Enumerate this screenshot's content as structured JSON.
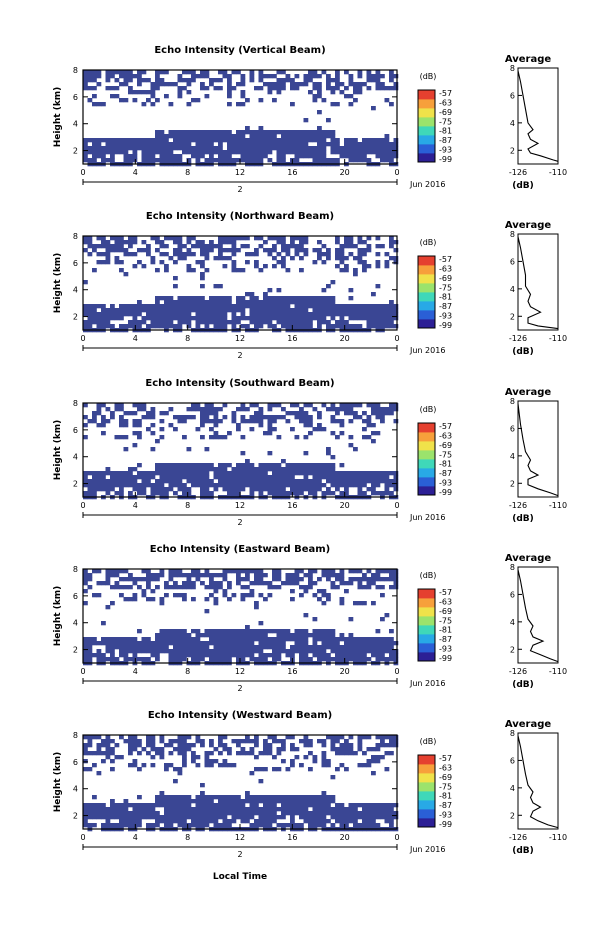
{
  "chart_data": [
    {
      "type": "heatmap",
      "title": "Echo Intensity (Vertical Beam)",
      "ylabel": "Height (km)",
      "x_ticks": [
        "0",
        "4",
        "8",
        "12",
        "16",
        "20",
        "0"
      ],
      "xlim": [
        0,
        24
      ],
      "ylim": [
        1,
        8
      ],
      "y_ticks": [
        "2",
        "4",
        "6",
        "8"
      ],
      "date_label": "2",
      "month_label": "Jun 2016",
      "colorbar": {
        "unit": "(dB)",
        "ticks": [
          "-57",
          "-63",
          "-69",
          "-75",
          "-81",
          "-87",
          "-93",
          "-99"
        ]
      },
      "profile": {
        "title": "Average",
        "xlabel": "(dB)",
        "x_ticks": [
          "-126",
          "-110"
        ],
        "y_ticks": [
          "2",
          "4",
          "6",
          "8"
        ],
        "xlim": [
          -126,
          -110
        ],
        "ylim": [
          1,
          8
        ],
        "points": [
          [
            -110,
            1.2
          ],
          [
            -112,
            1.3
          ],
          [
            -117,
            1.6
          ],
          [
            -121,
            1.8
          ],
          [
            -122,
            2.1
          ],
          [
            -118,
            2.5
          ],
          [
            -121,
            2.8
          ],
          [
            -122,
            3.2
          ],
          [
            -120,
            3.5
          ],
          [
            -122,
            4.0
          ],
          [
            -123,
            5.0
          ],
          [
            -124,
            6.0
          ],
          [
            -125,
            7.0
          ],
          [
            -126,
            7.8
          ]
        ]
      }
    },
    {
      "type": "heatmap",
      "title": "Echo Intensity (Northward Beam)",
      "ylabel": "Height (km)",
      "x_ticks": [
        "0",
        "4",
        "8",
        "12",
        "16",
        "20",
        "0"
      ],
      "xlim": [
        0,
        24
      ],
      "ylim": [
        1,
        8
      ],
      "y_ticks": [
        "2",
        "4",
        "6",
        "8"
      ],
      "date_label": "2",
      "month_label": "Jun 2016",
      "colorbar": {
        "unit": "(dB)",
        "ticks": [
          "-57",
          "-63",
          "-69",
          "-75",
          "-81",
          "-87",
          "-93",
          "-99"
        ]
      },
      "profile": {
        "title": "Average",
        "xlabel": "(dB)",
        "x_ticks": [
          "-126",
          "-110"
        ],
        "y_ticks": [
          "2",
          "4",
          "6",
          "8"
        ],
        "xlim": [
          -126,
          -110
        ],
        "ylim": [
          1,
          8
        ],
        "points": [
          [
            -110,
            1.1
          ],
          [
            -118,
            1.3
          ],
          [
            -122,
            1.5
          ],
          [
            -122,
            1.9
          ],
          [
            -117,
            2.3
          ],
          [
            -121,
            2.7
          ],
          [
            -122,
            3.1
          ],
          [
            -121,
            3.6
          ],
          [
            -123,
            4.2
          ],
          [
            -123,
            5.0
          ],
          [
            -124,
            6.0
          ],
          [
            -125,
            7.0
          ],
          [
            -126,
            7.8
          ]
        ]
      }
    },
    {
      "type": "heatmap",
      "title": "Echo Intensity (Southward Beam)",
      "ylabel": "Height (km)",
      "x_ticks": [
        "0",
        "4",
        "8",
        "12",
        "16",
        "20",
        "0"
      ],
      "xlim": [
        0,
        24
      ],
      "ylim": [
        1,
        8
      ],
      "y_ticks": [
        "2",
        "4",
        "6",
        "8"
      ],
      "date_label": "2",
      "month_label": "Jun 2016",
      "colorbar": {
        "unit": "(dB)",
        "ticks": [
          "-57",
          "-63",
          "-69",
          "-75",
          "-81",
          "-87",
          "-93",
          "-99"
        ]
      },
      "profile": {
        "title": "Average",
        "xlabel": "(dB)",
        "x_ticks": [
          "-126",
          "-110"
        ],
        "y_ticks": [
          "2",
          "4",
          "6",
          "8"
        ],
        "xlim": [
          -126,
          -110
        ],
        "ylim": [
          1,
          8
        ],
        "points": [
          [
            -110,
            1.1
          ],
          [
            -113,
            1.3
          ],
          [
            -118,
            1.6
          ],
          [
            -122,
            1.9
          ],
          [
            -122,
            2.3
          ],
          [
            -118,
            2.6
          ],
          [
            -121,
            2.9
          ],
          [
            -122,
            3.3
          ],
          [
            -121,
            3.7
          ],
          [
            -123,
            4.3
          ],
          [
            -124,
            5.2
          ],
          [
            -125,
            6.3
          ],
          [
            -126,
            7.8
          ]
        ]
      }
    },
    {
      "type": "heatmap",
      "title": "Echo Intensity (Eastward Beam)",
      "ylabel": "Height (km)",
      "x_ticks": [
        "0",
        "4",
        "8",
        "12",
        "16",
        "20",
        "0"
      ],
      "xlim": [
        0,
        24
      ],
      "ylim": [
        1,
        8
      ],
      "y_ticks": [
        "2",
        "4",
        "6",
        "8"
      ],
      "date_label": "2",
      "month_label": "Jun 2016",
      "colorbar": {
        "unit": "(dB)",
        "ticks": [
          "-57",
          "-63",
          "-69",
          "-75",
          "-81",
          "-87",
          "-93",
          "-99"
        ]
      },
      "profile": {
        "title": "Average",
        "xlabel": "(dB)",
        "x_ticks": [
          "-126",
          "-110"
        ],
        "y_ticks": [
          "2",
          "4",
          "6",
          "8"
        ],
        "xlim": [
          -126,
          -110
        ],
        "ylim": [
          1,
          8
        ],
        "points": [
          [
            -110,
            1.1
          ],
          [
            -113,
            1.3
          ],
          [
            -117,
            1.6
          ],
          [
            -121,
            1.9
          ],
          [
            -120,
            2.3
          ],
          [
            -116,
            2.6
          ],
          [
            -120,
            2.9
          ],
          [
            -121,
            3.3
          ],
          [
            -120,
            3.7
          ],
          [
            -122,
            4.2
          ],
          [
            -123,
            5.0
          ],
          [
            -124,
            6.0
          ],
          [
            -125,
            7.0
          ],
          [
            -126,
            7.8
          ]
        ]
      }
    },
    {
      "type": "heatmap",
      "title": "Echo Intensity (Westward Beam)",
      "ylabel": "Height (km)",
      "xlabel": "Local Time",
      "x_ticks": [
        "0",
        "4",
        "8",
        "12",
        "16",
        "20",
        "0"
      ],
      "xlim": [
        0,
        24
      ],
      "ylim": [
        1,
        8
      ],
      "y_ticks": [
        "2",
        "4",
        "6",
        "8"
      ],
      "date_label": "2",
      "month_label": "Jun 2016",
      "colorbar": {
        "unit": "(dB)",
        "ticks": [
          "-57",
          "-63",
          "-69",
          "-75",
          "-81",
          "-87",
          "-93",
          "-99"
        ]
      },
      "profile": {
        "title": "Average",
        "xlabel": "(dB)",
        "x_ticks": [
          "-126",
          "-110"
        ],
        "y_ticks": [
          "2",
          "4",
          "6",
          "8"
        ],
        "xlim": [
          -126,
          -110
        ],
        "ylim": [
          1,
          8
        ],
        "points": [
          [
            -110,
            1.1
          ],
          [
            -114,
            1.3
          ],
          [
            -118,
            1.6
          ],
          [
            -121,
            1.9
          ],
          [
            -120,
            2.3
          ],
          [
            -117,
            2.6
          ],
          [
            -120,
            2.9
          ],
          [
            -121,
            3.3
          ],
          [
            -120,
            3.7
          ],
          [
            -122,
            4.2
          ],
          [
            -123,
            5.0
          ],
          [
            -124,
            6.0
          ],
          [
            -125,
            7.0
          ],
          [
            -126,
            7.8
          ]
        ]
      }
    }
  ],
  "colors": {
    "field": "#3a4694",
    "colorbar_stops": [
      "#2c1f95",
      "#2a5fd6",
      "#28a9e6",
      "#3fd8b9",
      "#9be36c",
      "#f0e24a",
      "#f7a03b",
      "#e5402f"
    ]
  }
}
